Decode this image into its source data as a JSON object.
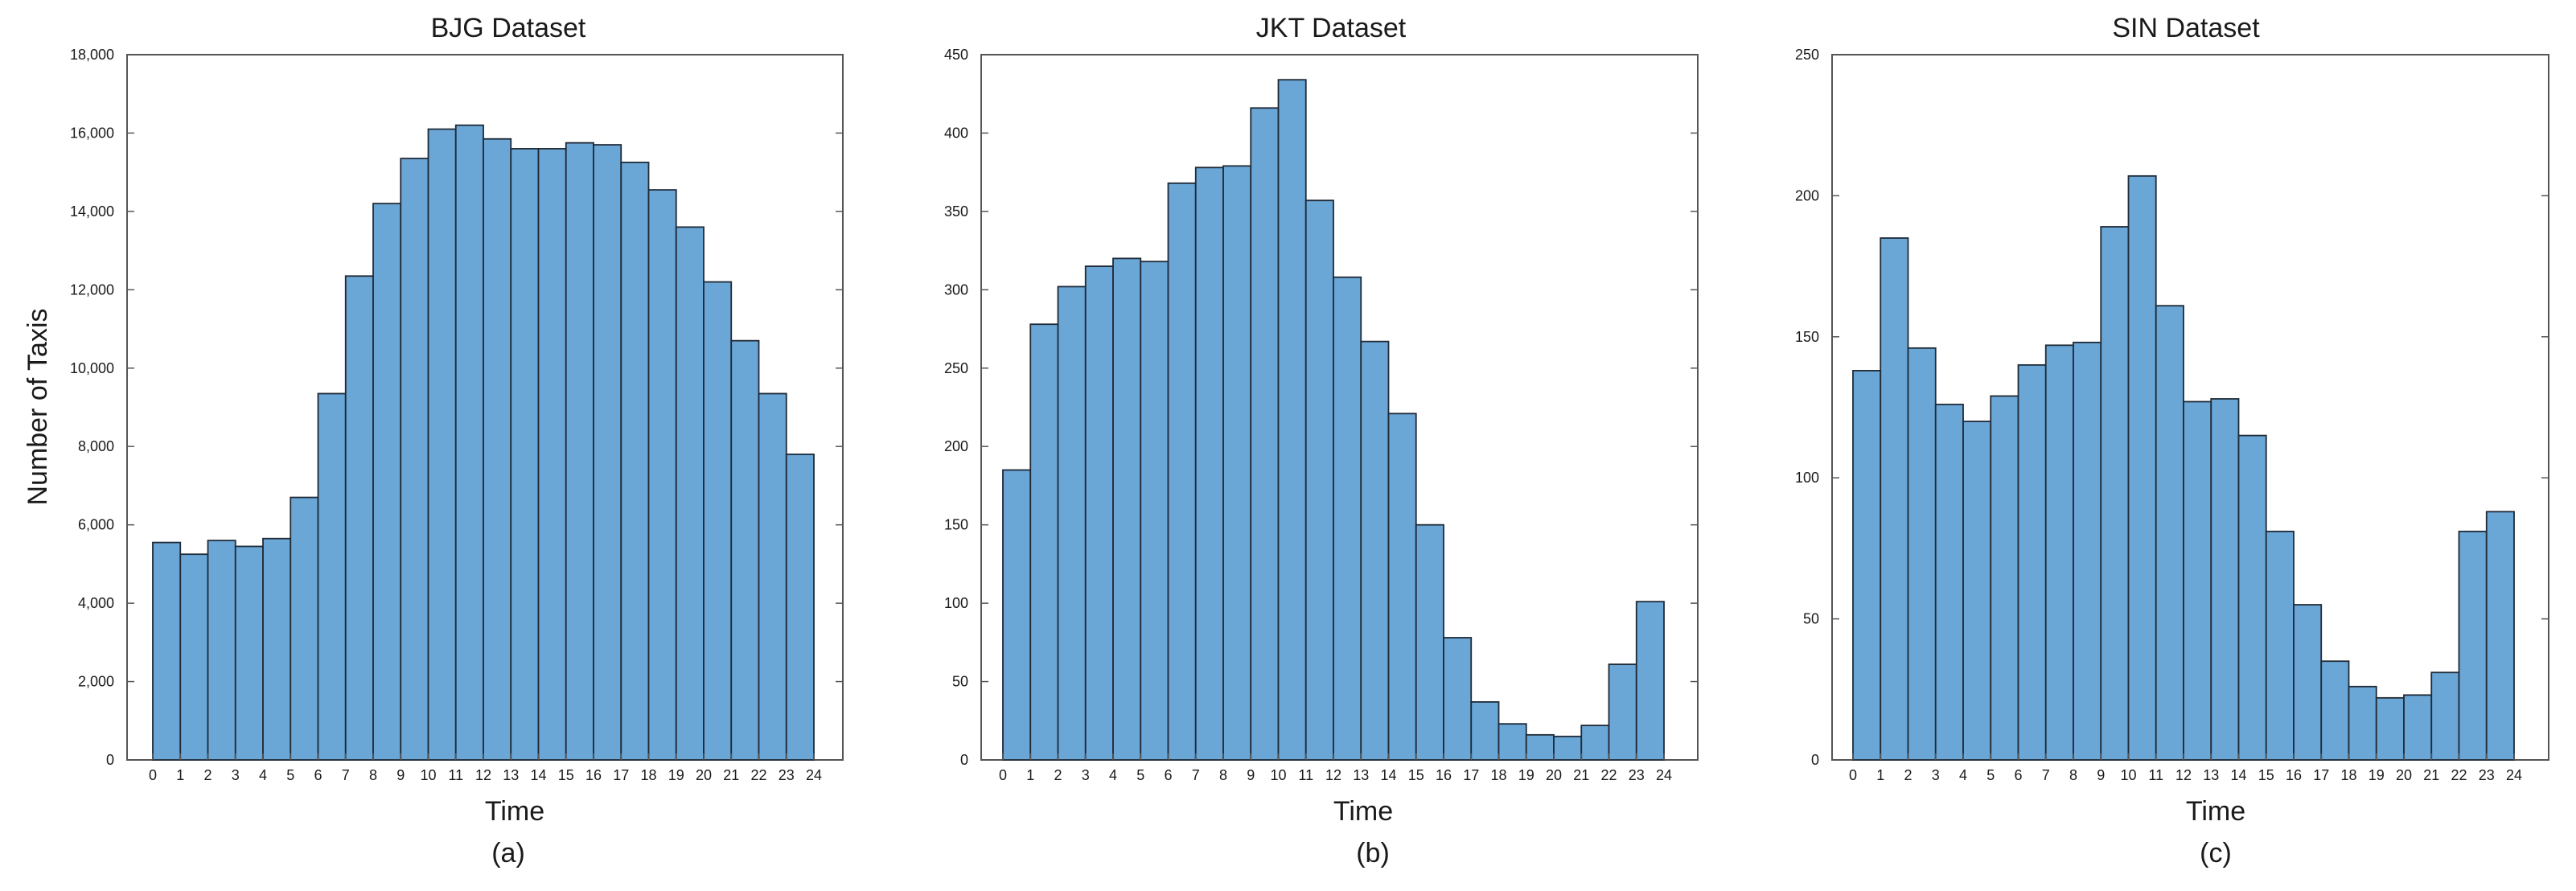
{
  "colors": {
    "bar_fill": "#6aa6d6",
    "bar_stroke": "#1f2a36",
    "axes": "#555555"
  },
  "chart_data": [
    {
      "type": "bar",
      "title": "BJG Dataset",
      "xlabel": "Time",
      "ylabel": "Number of Taxis",
      "caption": "(a)",
      "bin_edges": [
        0,
        1,
        2,
        3,
        4,
        5,
        6,
        7,
        8,
        9,
        10,
        11,
        12,
        13,
        14,
        15,
        16,
        17,
        18,
        19,
        20,
        21,
        22,
        23,
        24
      ],
      "values": [
        5550,
        5250,
        5600,
        5450,
        5650,
        6700,
        9350,
        12350,
        14200,
        15350,
        16100,
        16200,
        15850,
        15600,
        15600,
        15750,
        15700,
        15250,
        14550,
        13600,
        12200,
        10700,
        9350,
        7800
      ],
      "ylim": [
        0,
        18000
      ],
      "yticks": [
        0,
        2000,
        4000,
        6000,
        8000,
        10000,
        12000,
        14000,
        16000,
        18000
      ],
      "ytick_labels": [
        "0",
        "2,000",
        "4,000",
        "6,000",
        "8,000",
        "10,000",
        "12,000",
        "14,000",
        "16,000",
        "18,000"
      ],
      "grid": false
    },
    {
      "type": "bar",
      "title": "JKT Dataset",
      "xlabel": "Time",
      "ylabel": "",
      "caption": "(b)",
      "bin_edges": [
        0,
        1,
        2,
        3,
        4,
        5,
        6,
        7,
        8,
        9,
        10,
        11,
        12,
        13,
        14,
        15,
        16,
        17,
        18,
        19,
        20,
        21,
        22,
        23,
        24
      ],
      "values": [
        185,
        278,
        302,
        315,
        320,
        318,
        368,
        378,
        379,
        416,
        434,
        357,
        308,
        267,
        221,
        150,
        78,
        37,
        23,
        16,
        15,
        22,
        61,
        101
      ],
      "ylim": [
        0,
        450
      ],
      "yticks": [
        0,
        50,
        100,
        150,
        200,
        250,
        300,
        350,
        400,
        450
      ],
      "ytick_labels": [
        "0",
        "50",
        "100",
        "150",
        "200",
        "250",
        "300",
        "350",
        "400",
        "450"
      ],
      "grid": false
    },
    {
      "type": "bar",
      "title": "SIN Dataset",
      "xlabel": "Time",
      "ylabel": "",
      "caption": "(c)",
      "bin_edges": [
        0,
        1,
        2,
        3,
        4,
        5,
        6,
        7,
        8,
        9,
        10,
        11,
        12,
        13,
        14,
        15,
        16,
        17,
        18,
        19,
        20,
        21,
        22,
        23,
        24
      ],
      "values": [
        138,
        185,
        146,
        126,
        120,
        129,
        140,
        147,
        148,
        189,
        207,
        161,
        127,
        128,
        115,
        81,
        55,
        35,
        26,
        22,
        23,
        31,
        81,
        88
      ],
      "ylim": [
        0,
        250
      ],
      "yticks": [
        0,
        50,
        100,
        150,
        200,
        250
      ],
      "ytick_labels": [
        "0",
        "50",
        "100",
        "150",
        "200",
        "250"
      ],
      "grid": false
    }
  ]
}
